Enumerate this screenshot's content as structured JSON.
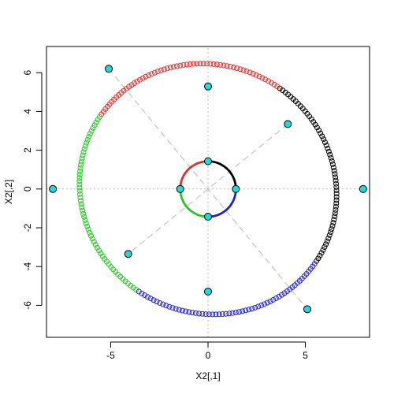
{
  "chart_data": {
    "type": "scatter",
    "title": "",
    "xlabel": "X2[,1]",
    "ylabel": "X2[,2]",
    "xlim": [
      -8.3,
      8.3
    ],
    "ylim": [
      -7.65,
      7.35
    ],
    "x_ticks": [
      -5,
      0,
      5
    ],
    "x_tick_labels": [
      "-5",
      "0",
      "5"
    ],
    "y_ticks": [
      -6,
      -4,
      -2,
      0,
      2,
      4,
      6
    ],
    "y_tick_labels": [
      "-6",
      "-4",
      "-2",
      "0",
      "2",
      "4",
      "6"
    ],
    "grid": false,
    "colors": {
      "quadrant_1": "#000000",
      "quadrant_2": "#df3030",
      "quadrant_3": "#2bc42b",
      "quadrant_4": "#2020d0",
      "reference_lines": "#bbbbbb",
      "key_points_fill": "#22d8d8"
    },
    "unit_circle_radius": 1.43,
    "transformation_matrix": [
      [
        5.57,
        3.55
      ],
      [
        -3.72,
        5.29
      ]
    ],
    "point_count_per_curve": 240,
    "reference_lines": [
      {
        "from": [
          -8.3,
          0
        ],
        "to": [
          8.3,
          0
        ]
      },
      {
        "from": [
          0,
          -7.65
        ],
        "to": [
          0,
          7.35
        ]
      },
      {
        "from": [
          -5.1,
          6.2
        ],
        "to": [
          5.1,
          -6.2
        ]
      },
      {
        "from": [
          4.1,
          3.35
        ],
        "to": [
          -4.1,
          -3.35
        ]
      }
    ],
    "key_points": [
      [
        1.43,
        0
      ],
      [
        0,
        1.43
      ],
      [
        -1.43,
        0
      ],
      [
        0,
        -1.43
      ],
      [
        7.97,
        0
      ],
      [
        0,
        5.29
      ],
      [
        -7.97,
        0
      ],
      [
        0,
        -5.29
      ],
      [
        4.1,
        3.35
      ],
      [
        -4.1,
        -3.35
      ],
      [
        -5.1,
        6.2
      ],
      [
        5.1,
        -6.2
      ]
    ]
  }
}
